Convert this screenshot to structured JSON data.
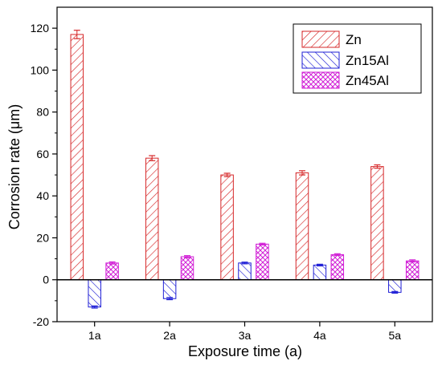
{
  "chart_data": {
    "type": "bar",
    "categories": [
      "1a",
      "2a",
      "3a",
      "4a",
      "5a"
    ],
    "series": [
      {
        "name": "Zn",
        "values": [
          117,
          58,
          50,
          51,
          54
        ],
        "errors": [
          2,
          1.2,
          0.8,
          1,
          0.8
        ],
        "color": "#d62728",
        "pattern": "forward-diagonal"
      },
      {
        "name": "Zn15Al",
        "values": [
          -13,
          -9,
          8,
          7,
          -6
        ],
        "errors": [
          0.5,
          0.5,
          0.4,
          0.4,
          0.4
        ],
        "color": "#1f1fd6",
        "pattern": "back-diagonal"
      },
      {
        "name": "Zn45Al",
        "values": [
          8,
          11,
          17,
          12,
          9
        ],
        "errors": [
          0.5,
          0.5,
          0.4,
          0.4,
          0.5
        ],
        "color": "#d11fd6",
        "pattern": "crosshatch"
      }
    ],
    "xlabel": "Exposure time (a)",
    "ylabel": "Corrosion rate (μm)",
    "ylim": [
      -20,
      130
    ],
    "yticks": [
      -20,
      0,
      20,
      40,
      60,
      80,
      100,
      120
    ],
    "zero_line": true,
    "grid": false,
    "legend": "top-right"
  }
}
